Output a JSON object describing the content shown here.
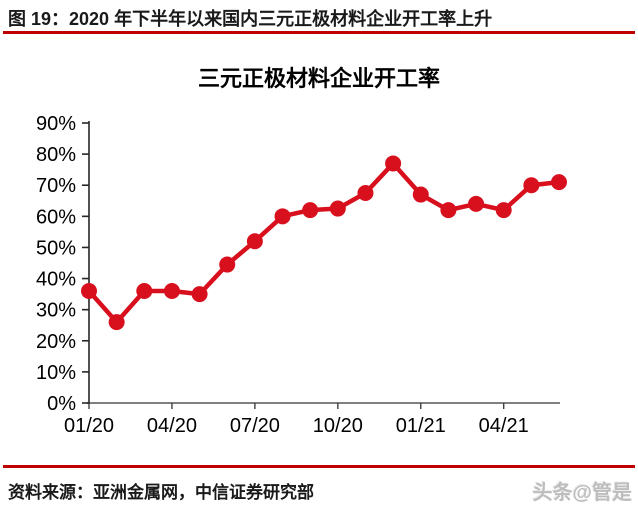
{
  "header": {
    "figure_title": "图 19：2020 年下半年以来国内三元正极材料企业开工率上升"
  },
  "footer": {
    "source": "资料来源：亚洲金属网，中信证券研究部",
    "watermark": "头条@管是"
  },
  "colors": {
    "rule_red": "#bf0000",
    "series_red": "#d8101e",
    "axis_gray": "#808080",
    "axis_black": "#262626"
  },
  "chart_data": {
    "type": "line",
    "title": "三元正极材料企业开工率",
    "x": [
      "01/20",
      "02/20",
      "03/20",
      "04/20",
      "05/20",
      "06/20",
      "07/20",
      "08/20",
      "09/20",
      "10/20",
      "11/20",
      "12/20",
      "01/21",
      "02/21",
      "03/21",
      "04/21",
      "05/21",
      "06/21"
    ],
    "values": [
      36,
      26,
      36,
      36,
      35,
      44.5,
      52,
      60,
      62,
      62.5,
      67.5,
      77,
      67,
      62,
      64,
      62,
      70,
      71
    ],
    "x_tick_indices": [
      0,
      3,
      6,
      9,
      12,
      15
    ],
    "y_tick_labels": [
      "0%",
      "10%",
      "20%",
      "30%",
      "40%",
      "50%",
      "60%",
      "70%",
      "80%",
      "90%"
    ],
    "y_tick_step": 10,
    "ylim": [
      0,
      90
    ],
    "xlabel": "",
    "ylabel": "",
    "grid": false,
    "legend": "none",
    "series_color": "#d8101e",
    "marker": "circle"
  }
}
